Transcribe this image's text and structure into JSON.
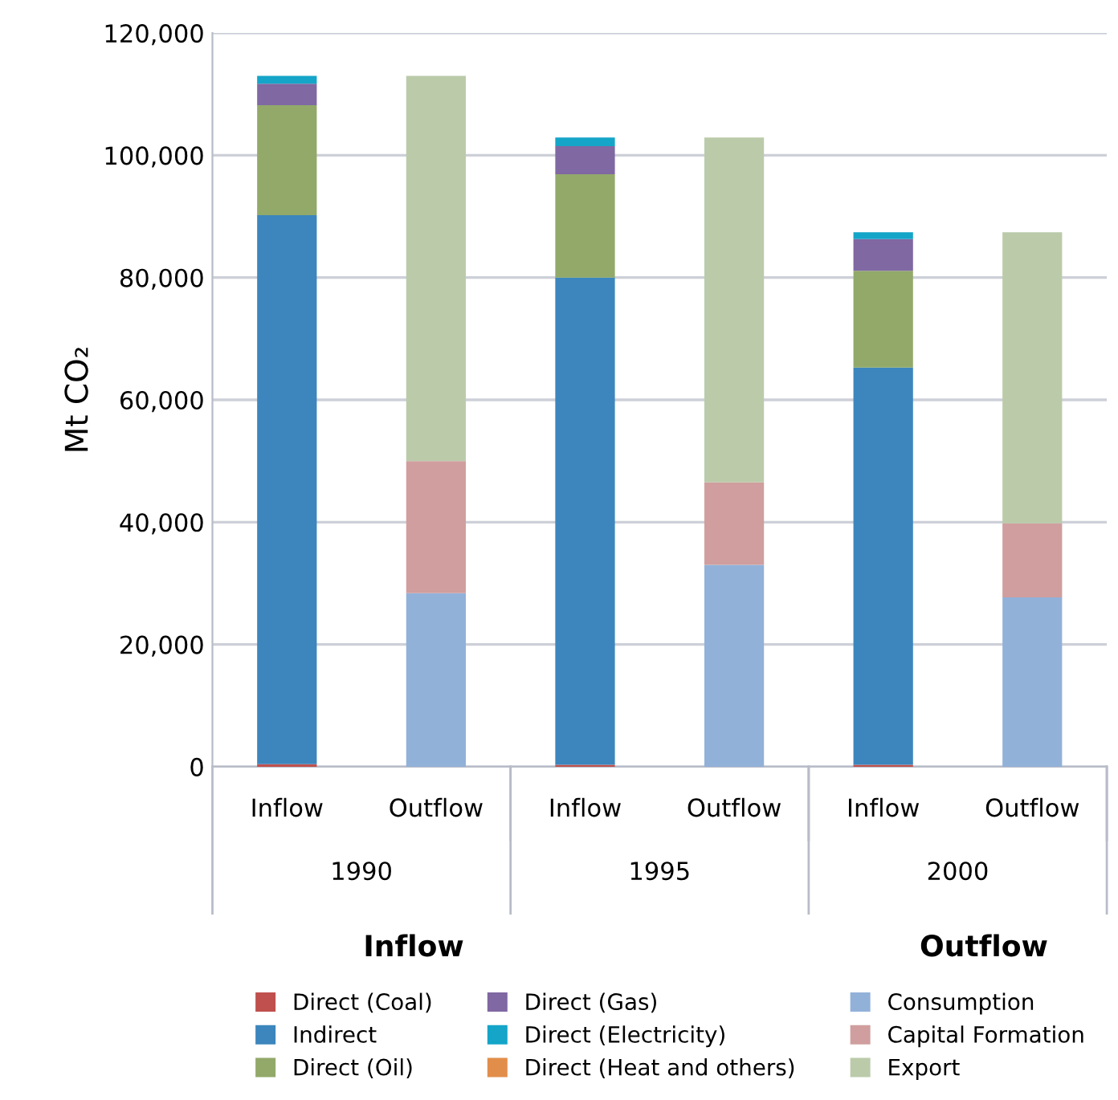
{
  "chart_data": {
    "type": "bar",
    "stacked": true,
    "ylabel": "Mt CO₂",
    "categories": [
      "Inflow",
      "Outflow",
      "Inflow",
      "Outflow",
      "Inflow",
      "Outflow"
    ],
    "series": [
      {
        "name": "Direct (Coal)",
        "color": "#c0504d",
        "values": [
          400,
          null,
          300,
          null,
          300,
          null
        ]
      },
      {
        "name": "Indirect",
        "color": "#3c86bd",
        "values": [
          89800,
          null,
          79700,
          null,
          65000,
          null
        ]
      },
      {
        "name": "Direct (Oil)",
        "color": "#92a96a",
        "values": [
          18000,
          null,
          16900,
          null,
          15800,
          null
        ]
      },
      {
        "name": "Direct (Gas)",
        "color": "#8068a2",
        "values": [
          3500,
          null,
          4600,
          null,
          5200,
          null
        ]
      },
      {
        "name": "Direct (Electricity)",
        "color": "#14a5c8",
        "values": [
          1300,
          null,
          1400,
          null,
          1100,
          null
        ]
      },
      {
        "name": "Direct (Heat and others)",
        "color": "#e28e4b",
        "values": [
          0,
          null,
          0,
          null,
          0,
          null
        ]
      },
      {
        "name": "Consumption",
        "color": "#92b1d9",
        "values": [
          null,
          28400,
          null,
          33000,
          null,
          27700
        ]
      },
      {
        "name": "Capital Formation",
        "color": "#d09e9e",
        "values": [
          null,
          21600,
          null,
          13500,
          null,
          12100
        ]
      },
      {
        "name": "Export",
        "color": "#bbcbaa",
        "values": [
          null,
          63000,
          null,
          56400,
          null,
          47600
        ]
      }
    ],
    "ylim": [
      0,
      120000
    ],
    "yticks": [
      {
        "value": 0,
        "label": "0"
      },
      {
        "value": 20000,
        "label": "20,000"
      },
      {
        "value": 40000,
        "label": "40,000"
      },
      {
        "value": 60000,
        "label": "60,000"
      },
      {
        "value": 80000,
        "label": "80,000"
      },
      {
        "value": 100000,
        "label": "100,000"
      },
      {
        "value": 120000,
        "label": "120,000"
      }
    ],
    "grid": "y",
    "legend": "bottom",
    "annotations": [
      "1990",
      "1995",
      "2000",
      "Inflow",
      "Outflow"
    ]
  }
}
